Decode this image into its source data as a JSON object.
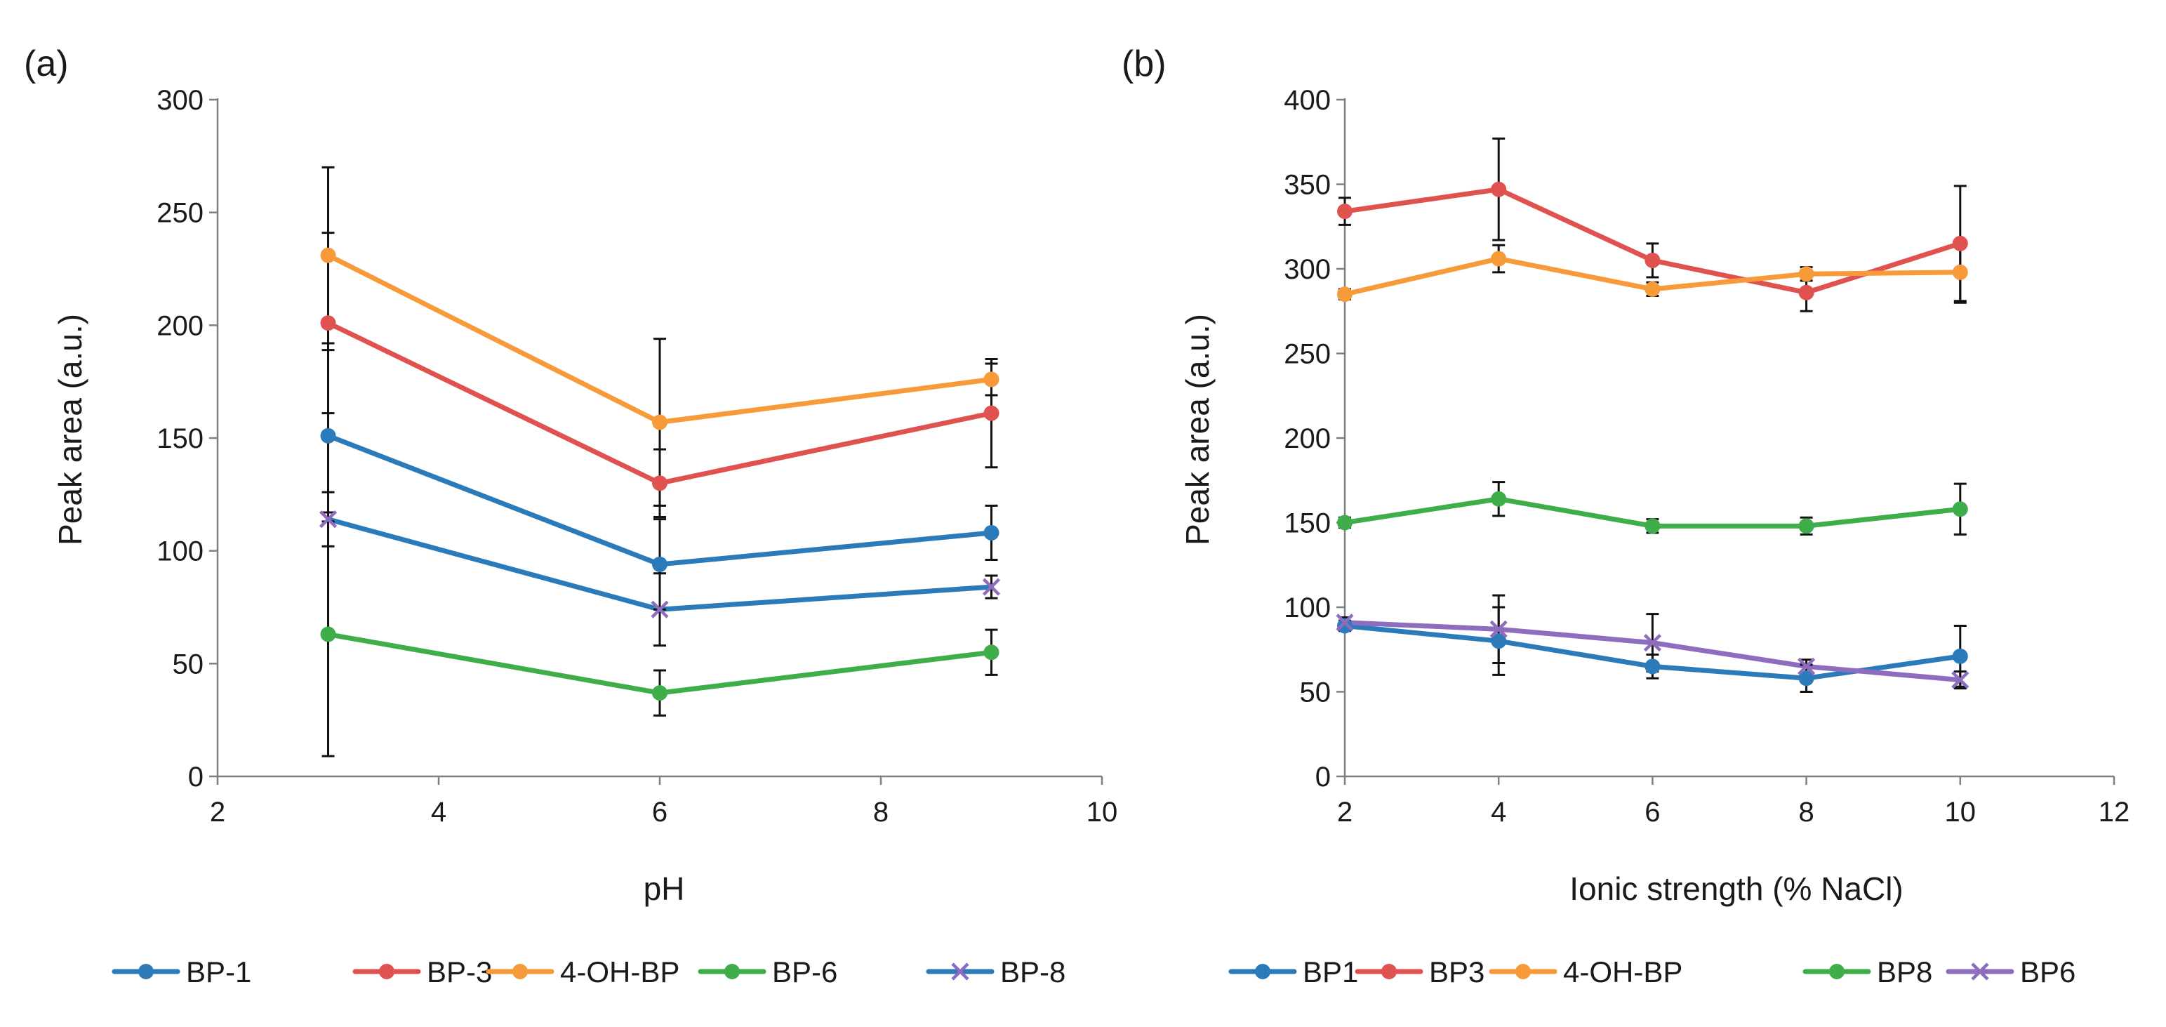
{
  "chart_data": [
    {
      "type": "line",
      "panel_label": "(a)",
      "title": "",
      "xlabel": "pH",
      "ylabel": "Peak area (a.u.)",
      "xlim": [
        2,
        10
      ],
      "ylim": [
        0,
        300
      ],
      "xticks": [
        2,
        4,
        6,
        8,
        10
      ],
      "yticks": [
        0,
        50,
        100,
        150,
        200,
        250,
        300
      ],
      "x": [
        3,
        6,
        9
      ],
      "legend_position": "bottom",
      "series": [
        {
          "name": "BP-1",
          "color": "#2b7bba",
          "marker": "circle",
          "values": [
            151,
            94,
            108
          ],
          "errors": [
            38,
            20,
            12
          ]
        },
        {
          "name": "BP-3",
          "color": "#e0524f",
          "marker": "circle",
          "values": [
            201,
            130,
            161
          ],
          "errors": [
            40,
            15,
            24
          ]
        },
        {
          "name": "4-OH-BP",
          "color": "#f79a3a",
          "marker": "circle",
          "values": [
            231,
            157,
            176
          ],
          "errors": [
            39,
            37,
            7
          ]
        },
        {
          "name": "BP-6",
          "color": "#3fae4a",
          "marker": "circle",
          "values": [
            63,
            37,
            55
          ],
          "errors": [
            54,
            10,
            10
          ]
        },
        {
          "name": "BP-8",
          "color": "#2b7bba",
          "marker": "x",
          "marker_color": "#8e6dbf",
          "values": [
            114,
            74,
            84
          ],
          "errors": [
            12,
            16,
            5
          ]
        }
      ]
    },
    {
      "type": "line",
      "panel_label": "(b)",
      "title": "",
      "xlabel": "Ionic strength (% NaCl)",
      "ylabel": "Peak area (a.u.)",
      "xlim": [
        2,
        12
      ],
      "ylim": [
        0,
        400
      ],
      "xticks": [
        2,
        4,
        6,
        8,
        10,
        12
      ],
      "yticks": [
        0,
        50,
        100,
        150,
        200,
        250,
        300,
        350,
        400
      ],
      "x": [
        2,
        4,
        6,
        8,
        10
      ],
      "legend_position": "bottom",
      "series": [
        {
          "name": "BP1",
          "color": "#2b7bba",
          "marker": "circle",
          "values": [
            89,
            80,
            65,
            58,
            71
          ],
          "errors": [
            3,
            20,
            7,
            8,
            18
          ]
        },
        {
          "name": "BP3",
          "color": "#e0524f",
          "marker": "circle",
          "values": [
            334,
            347,
            305,
            286,
            315
          ],
          "errors": [
            8,
            30,
            10,
            11,
            34
          ]
        },
        {
          "name": "4-OH-BP",
          "color": "#f79a3a",
          "marker": "circle",
          "values": [
            285,
            306,
            288,
            297,
            298
          ],
          "errors": [
            3,
            8,
            4,
            4,
            18
          ]
        },
        {
          "name": "BP8",
          "color": "#3fae4a",
          "marker": "circle",
          "values": [
            150,
            164,
            148,
            148,
            158
          ],
          "errors": [
            3,
            10,
            4,
            5,
            15
          ]
        },
        {
          "name": "BP6",
          "color": "#8e6dbf",
          "marker": "x",
          "values": [
            91,
            87,
            79,
            65,
            57
          ],
          "errors": [
            3,
            20,
            17,
            4,
            5
          ]
        }
      ]
    }
  ]
}
